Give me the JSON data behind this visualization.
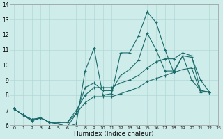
{
  "xlabel": "Humidex (Indice chaleur)",
  "xlim": [
    -0.5,
    23
  ],
  "ylim": [
    6,
    14
  ],
  "xtick_labels": [
    "0",
    "1",
    "2",
    "3",
    "4",
    "5",
    "6",
    "7",
    "8",
    "9",
    "10",
    "11",
    "12",
    "13",
    "14",
    "15",
    "16",
    "17",
    "18",
    "19",
    "20",
    "21",
    "22",
    "23"
  ],
  "ytick_labels": [
    "6",
    "7",
    "8",
    "9",
    "10",
    "11",
    "12",
    "13",
    "14"
  ],
  "ytick_vals": [
    6,
    7,
    8,
    9,
    10,
    11,
    12,
    13,
    14
  ],
  "bg_color": "#ceecea",
  "grid_color": "#b0d8d5",
  "line_color": "#1a6b6b",
  "series": [
    {
      "x": [
        0,
        1,
        2,
        3,
        4,
        5,
        6,
        7,
        8,
        9,
        10,
        11,
        12,
        13,
        14,
        15,
        16,
        17,
        18,
        19,
        20,
        21,
        22
      ],
      "y": [
        7.1,
        6.7,
        6.3,
        6.5,
        6.2,
        6.1,
        5.9,
        6.1,
        9.6,
        11.1,
        8.0,
        8.1,
        10.8,
        10.8,
        11.9,
        13.5,
        12.8,
        11.0,
        9.5,
        10.6,
        9.0,
        8.3,
        8.2
      ]
    },
    {
      "x": [
        0,
        1,
        2,
        3,
        4,
        5,
        6,
        7,
        8,
        9,
        10,
        11,
        12,
        13,
        14,
        15,
        16,
        17,
        18,
        19,
        20,
        21,
        22
      ],
      "y": [
        7.1,
        6.7,
        6.3,
        6.5,
        6.2,
        6.1,
        5.9,
        6.8,
        8.5,
        8.8,
        8.3,
        8.3,
        9.3,
        9.7,
        10.3,
        12.1,
        11.0,
        9.6,
        9.6,
        10.6,
        10.5,
        9.0,
        8.2
      ]
    },
    {
      "x": [
        0,
        1,
        2,
        3,
        4,
        5,
        6,
        7,
        8,
        9,
        10,
        11,
        12,
        13,
        14,
        15,
        16,
        17,
        18,
        19,
        20,
        21,
        22
      ],
      "y": [
        7.1,
        6.7,
        6.4,
        6.5,
        6.2,
        6.2,
        6.2,
        7.0,
        8.0,
        8.5,
        8.5,
        8.5,
        8.8,
        9.0,
        9.3,
        9.8,
        10.2,
        10.4,
        10.4,
        10.8,
        10.6,
        8.3,
        8.2
      ]
    },
    {
      "x": [
        0,
        1,
        2,
        3,
        4,
        5,
        6,
        7,
        8,
        9,
        10,
        11,
        12,
        13,
        14,
        15,
        16,
        17,
        18,
        19,
        20,
        21,
        22
      ],
      "y": [
        7.1,
        6.7,
        6.4,
        6.5,
        6.2,
        6.2,
        6.2,
        6.8,
        7.5,
        7.9,
        7.9,
        7.9,
        8.1,
        8.3,
        8.5,
        8.9,
        9.1,
        9.3,
        9.5,
        9.7,
        9.8,
        8.2,
        8.2
      ]
    }
  ]
}
